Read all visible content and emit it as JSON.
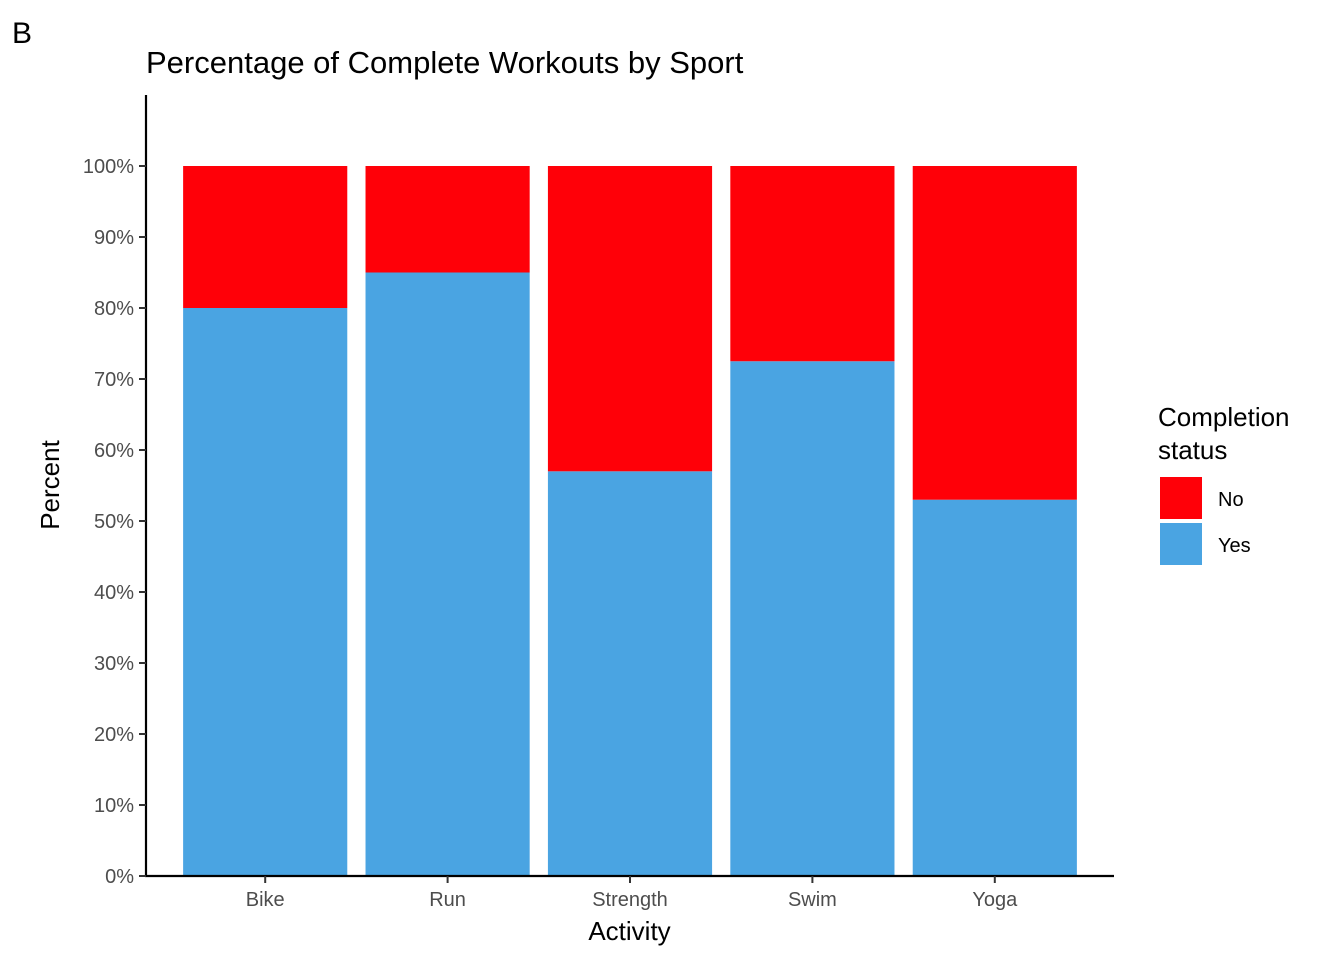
{
  "panel_tag": "B",
  "chart_data": {
    "type": "bar",
    "stacked": true,
    "title": "Percentage of Complete Workouts by Sport",
    "xlabel": "Activity",
    "ylabel": "Percent",
    "categories": [
      "Bike",
      "Run",
      "Strength",
      "Swim",
      "Yoga"
    ],
    "series": [
      {
        "name": "Yes",
        "color": "#4aa4e2",
        "values": [
          80,
          85,
          57,
          72.5,
          53
        ]
      },
      {
        "name": "No",
        "color": "#ff0008",
        "values": [
          20,
          15,
          43,
          27.5,
          47
        ]
      }
    ],
    "ylim": [
      0,
      110
    ],
    "yticks": [
      0,
      10,
      20,
      30,
      40,
      50,
      60,
      70,
      80,
      90,
      100
    ],
    "ytick_labels": [
      "0%",
      "10%",
      "20%",
      "30%",
      "40%",
      "50%",
      "60%",
      "70%",
      "80%",
      "90%",
      "100%"
    ],
    "grid": false,
    "legend": {
      "title_lines": [
        "Completion",
        "status"
      ],
      "placement": "right",
      "entries": [
        {
          "label": "No",
          "color": "#ff0008"
        },
        {
          "label": "Yes",
          "color": "#4aa4e2"
        }
      ]
    }
  }
}
